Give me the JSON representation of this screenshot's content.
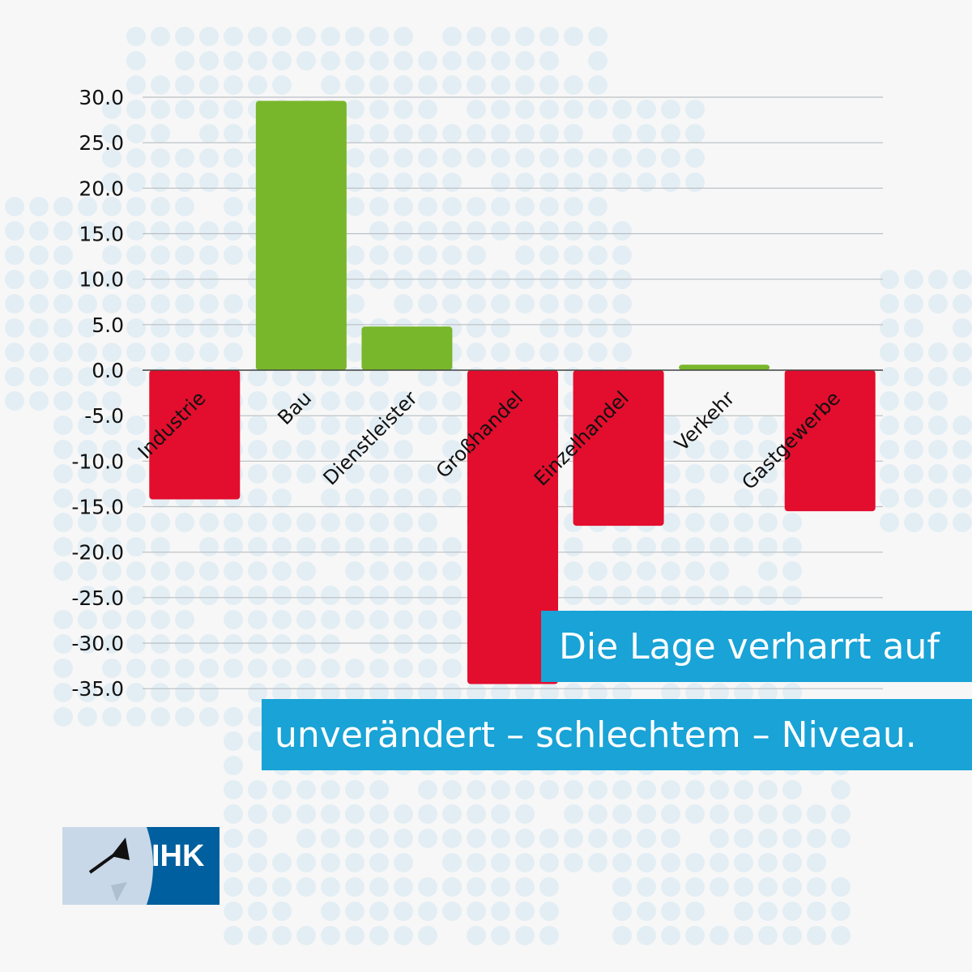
{
  "chart_data": {
    "type": "bar",
    "categories": [
      "Industrie",
      "Bau",
      "Dienstleister",
      "Großhandel",
      "Einzelhandel",
      "Verkehr",
      "Gastgewerbe"
    ],
    "values": [
      -14.2,
      29.6,
      4.8,
      -34.5,
      -17.1,
      0.6,
      -15.5
    ],
    "ylim": [
      -35,
      30
    ],
    "yticks": [
      30,
      25,
      20,
      15,
      10,
      5,
      0,
      -5,
      -10,
      -15,
      -20,
      -25,
      -30,
      -35
    ],
    "ytick_labels": [
      "30.0",
      "25.0",
      "20.0",
      "15.0",
      "10.0",
      "5.0",
      "0.0",
      "-5.0",
      "-10.0",
      "-15.0",
      "-20.0",
      "-25.0",
      "-30.0",
      "-35.0"
    ],
    "grid": true,
    "colors": {
      "positive": "#78b72b",
      "negative": "#e30d2e"
    }
  },
  "banner": {
    "line1": "Die Lage verharrt auf",
    "line2": "unverändert – schlechtem – Niveau.",
    "color": "#19a3d6"
  },
  "logo": {
    "text": "IHK"
  }
}
